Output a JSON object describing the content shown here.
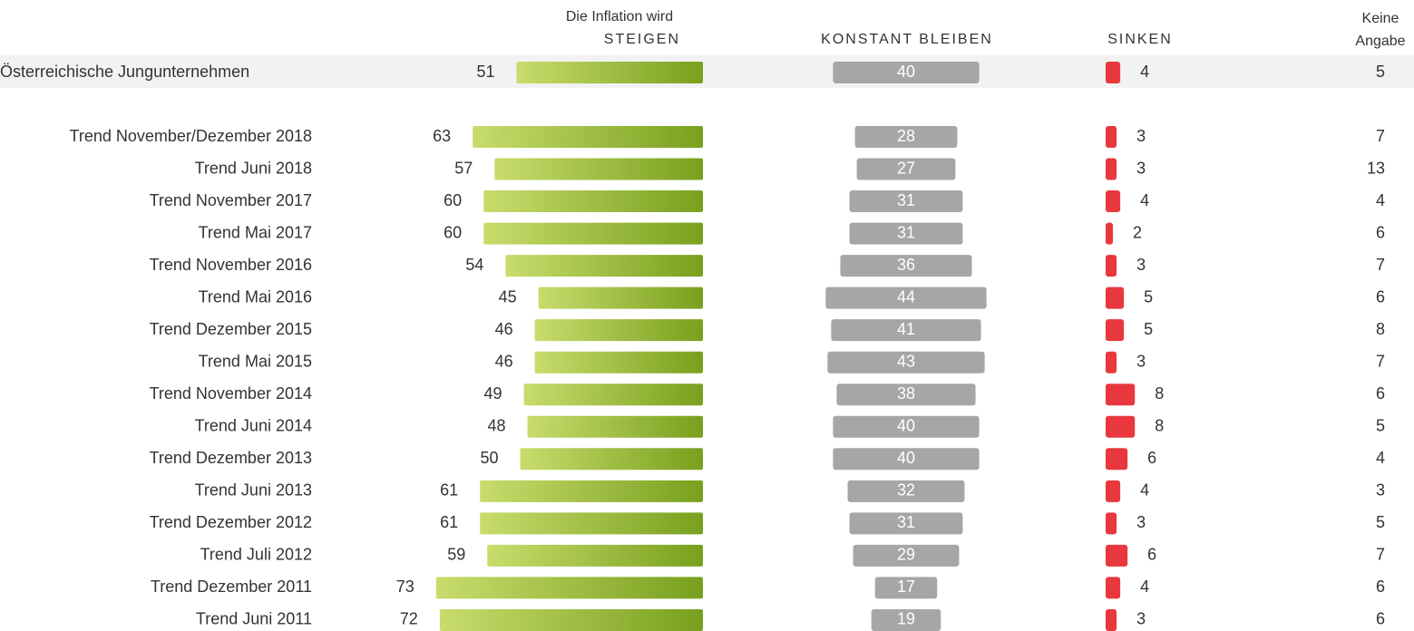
{
  "chart_data": {
    "type": "bar",
    "title": "Die Inflation wird",
    "categories": [
      "Österreichische Jungunternehmen",
      "Trend November/Dezember 2018",
      "Trend Juni 2018",
      "Trend November 2017",
      "Trend Mai 2017",
      "Trend November 2016",
      "Trend Mai 2016",
      "Trend Dezember 2015",
      "Trend Mai 2015",
      "Trend November 2014",
      "Trend Juni 2014",
      "Trend Dezember 2013",
      "Trend Juni 2013",
      "Trend Dezember 2012",
      "Trend Juli 2012",
      "Trend Dezember 2011",
      "Trend Juni 2011"
    ],
    "series": [
      {
        "name": "STEIGEN",
        "color": "#78a01e",
        "gradient_from": "#c8dc6c",
        "values": [
          51,
          63,
          57,
          60,
          60,
          54,
          45,
          46,
          46,
          49,
          48,
          50,
          61,
          61,
          59,
          73,
          72
        ]
      },
      {
        "name": "KONSTANT BLEIBEN",
        "color": "#a6a6a6",
        "values": [
          40,
          28,
          27,
          31,
          31,
          36,
          44,
          41,
          43,
          38,
          40,
          40,
          32,
          31,
          29,
          17,
          19
        ]
      },
      {
        "name": "SINKEN",
        "color": "#e8383d",
        "values": [
          4,
          3,
          3,
          4,
          2,
          3,
          5,
          5,
          3,
          8,
          8,
          6,
          4,
          3,
          6,
          4,
          3
        ]
      },
      {
        "name": "Keine Angabe",
        "bars": false,
        "values": [
          5,
          7,
          13,
          4,
          6,
          7,
          6,
          8,
          7,
          6,
          5,
          4,
          3,
          5,
          7,
          6,
          6
        ]
      }
    ]
  }
}
